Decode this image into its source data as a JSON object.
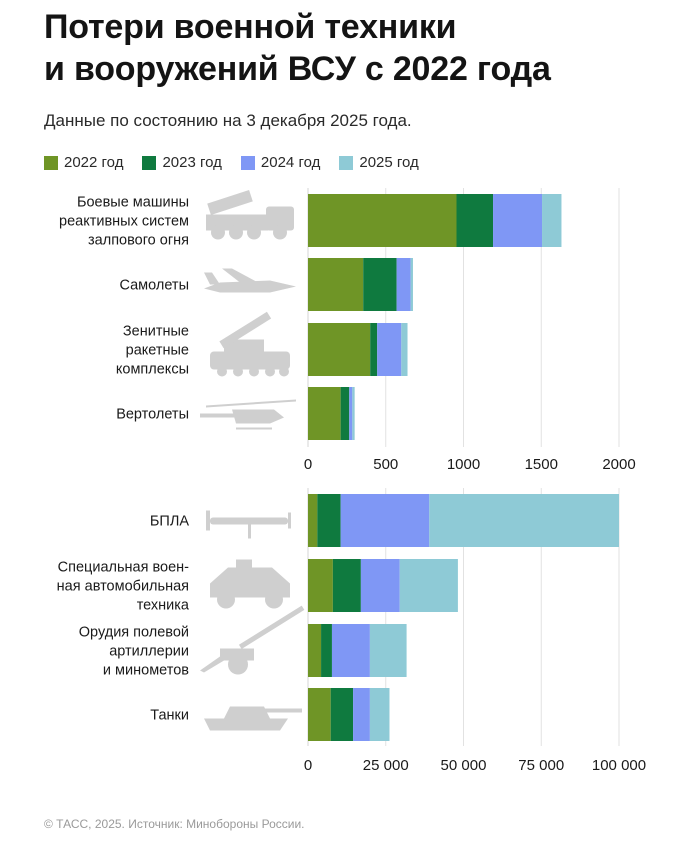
{
  "title_lines": [
    "Потери военной техники",
    "и вооружений ВСУ с 2022 года"
  ],
  "subtitle": "Данные по состоянию на 3 декабря 2025 года.",
  "legend": [
    {
      "label": "2022 год",
      "color": "#6f9526"
    },
    {
      "label": "2023 год",
      "color": "#0f7a3f"
    },
    {
      "label": "2024 год",
      "color": "#7f97f5"
    },
    {
      "label": "2025 год",
      "color": "#8ecad6"
    }
  ],
  "source": "© ТАСС, 2025. Источник: Минобороны России.",
  "chart_data": [
    {
      "type": "bar",
      "orientation": "horizontal",
      "stacked": true,
      "categories": [
        [
          "Боевые машины",
          "реактивных систем",
          "залпового огня"
        ],
        [
          "Самолеты"
        ],
        [
          "Зенитные",
          "ракетные",
          "комплексы"
        ],
        [
          "Вертолеты"
        ]
      ],
      "icons": [
        "mlrs-vehicle-icon",
        "airplane-icon",
        "air-defense-system-icon",
        "helicopter-icon"
      ],
      "series": [
        {
          "name": "2022 год",
          "values": [
            955,
            355,
            400,
            210
          ]
        },
        {
          "name": "2023 год",
          "values": [
            235,
            215,
            45,
            55
          ]
        },
        {
          "name": "2024 год",
          "values": [
            315,
            90,
            155,
            20
          ]
        },
        {
          "name": "2025 год",
          "values": [
            125,
            15,
            40,
            15
          ]
        }
      ],
      "xlim": [
        0,
        2000
      ],
      "xticks": [
        0,
        500,
        1000,
        1500,
        2000
      ],
      "xtick_labels": [
        "0",
        "500",
        "1000",
        "1500",
        "2000"
      ],
      "grid": true
    },
    {
      "type": "bar",
      "orientation": "horizontal",
      "stacked": true,
      "categories": [
        [
          "БПЛА"
        ],
        [
          "Специальная воен-",
          "ная автомобильная",
          "техника"
        ],
        [
          "Орудия полевой",
          "артиллерии",
          "и минометов"
        ],
        [
          "Танки"
        ]
      ],
      "icons": [
        "drone-icon",
        "military-vehicle-icon",
        "artillery-gun-icon",
        "tank-icon"
      ],
      "series": [
        {
          "name": "2022 год",
          "values": [
            3000,
            8000,
            4200,
            7300
          ]
        },
        {
          "name": "2023 год",
          "values": [
            7500,
            9000,
            3500,
            7200
          ]
        },
        {
          "name": "2024 год",
          "values": [
            28500,
            12500,
            12200,
            5400
          ]
        },
        {
          "name": "2025 год",
          "values": [
            61000,
            18700,
            11800,
            6300
          ]
        }
      ],
      "xlim": [
        0,
        100000
      ],
      "xticks": [
        0,
        25000,
        50000,
        75000,
        100000
      ],
      "xtick_labels": [
        "0",
        "25 000",
        "50 000",
        "75 000",
        "100 000"
      ],
      "grid": true
    }
  ]
}
